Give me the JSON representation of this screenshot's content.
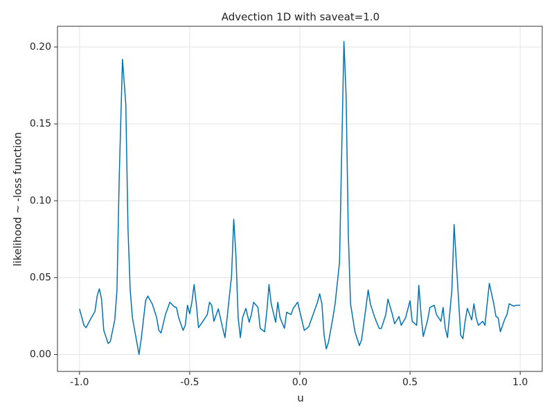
{
  "chart_data": {
    "type": "line",
    "title": "Advection 1D with saveat=1.0",
    "x_label": "u",
    "y_label": "likelihood ~ -loss function",
    "xlim": [
      -1.1,
      1.1
    ],
    "ylim": [
      -0.011,
      0.2135
    ],
    "xticks": [
      {
        "value": -1.0,
        "label": "-1.0"
      },
      {
        "value": -0.5,
        "label": "-0.5"
      },
      {
        "value": 0.0,
        "label": "0.0"
      },
      {
        "value": 0.5,
        "label": "0.5"
      },
      {
        "value": 1.0,
        "label": "1.0"
      }
    ],
    "yticks": [
      {
        "value": 0.0,
        "label": "0.00"
      },
      {
        "value": 0.05,
        "label": "0.05"
      },
      {
        "value": 0.1,
        "label": "0.10"
      },
      {
        "value": 0.15,
        "label": "0.15"
      },
      {
        "value": 0.2,
        "label": "0.20"
      }
    ],
    "grid": true,
    "x": [
      -1.0,
      -0.98,
      -0.97,
      -0.95,
      -0.93,
      -0.92,
      -0.91,
      -0.9,
      -0.89,
      -0.87,
      -0.86,
      -0.84,
      -0.83,
      -0.82,
      -0.805,
      -0.79,
      -0.78,
      -0.77,
      -0.76,
      -0.74,
      -0.73,
      -0.72,
      -0.7,
      -0.69,
      -0.67,
      -0.65,
      -0.64,
      -0.63,
      -0.61,
      -0.59,
      -0.57,
      -0.56,
      -0.55,
      -0.53,
      -0.52,
      -0.51,
      -0.5,
      -0.49,
      -0.48,
      -0.47,
      -0.46,
      -0.44,
      -0.42,
      -0.41,
      -0.4,
      -0.39,
      -0.37,
      -0.35,
      -0.34,
      -0.33,
      -0.31,
      -0.3,
      -0.29,
      -0.28,
      -0.27,
      -0.26,
      -0.245,
      -0.23,
      -0.22,
      -0.21,
      -0.19,
      -0.18,
      -0.16,
      -0.15,
      -0.14,
      -0.13,
      -0.11,
      -0.1,
      -0.09,
      -0.07,
      -0.06,
      -0.04,
      -0.03,
      -0.01,
      0.0,
      0.02,
      0.04,
      0.06,
      0.08,
      0.09,
      0.1,
      0.11,
      0.12,
      0.13,
      0.15,
      0.16,
      0.18,
      0.19,
      0.2,
      0.21,
      0.22,
      0.23,
      0.25,
      0.27,
      0.28,
      0.3,
      0.31,
      0.32,
      0.34,
      0.36,
      0.37,
      0.39,
      0.4,
      0.42,
      0.43,
      0.45,
      0.46,
      0.48,
      0.5,
      0.51,
      0.53,
      0.54,
      0.55,
      0.56,
      0.58,
      0.59,
      0.61,
      0.62,
      0.64,
      0.65,
      0.66,
      0.67,
      0.69,
      0.7,
      0.71,
      0.73,
      0.74,
      0.75,
      0.76,
      0.78,
      0.79,
      0.8,
      0.81,
      0.83,
      0.84,
      0.85,
      0.86,
      0.88,
      0.89,
      0.9,
      0.91,
      0.93,
      0.94,
      0.95,
      0.97,
      0.98,
      1.0
    ],
    "series": [
      {
        "color": "#0072b2",
        "values": [
          0.0297,
          0.019,
          0.0175,
          0.023,
          0.028,
          0.038,
          0.0427,
          0.036,
          0.0157,
          0.0072,
          0.0085,
          0.0225,
          0.042,
          0.114,
          0.192,
          0.163,
          0.082,
          0.042,
          0.024,
          0.008,
          0.0,
          0.01,
          0.035,
          0.038,
          0.033,
          0.024,
          0.0157,
          0.014,
          0.026,
          0.034,
          0.031,
          0.0306,
          0.024,
          0.0157,
          0.019,
          0.032,
          0.0265,
          0.034,
          0.0455,
          0.033,
          0.0175,
          0.0216,
          0.026,
          0.034,
          0.032,
          0.0216,
          0.0297,
          0.017,
          0.011,
          0.024,
          0.051,
          0.088,
          0.064,
          0.024,
          0.011,
          0.024,
          0.03,
          0.021,
          0.026,
          0.034,
          0.0306,
          0.017,
          0.0148,
          0.028,
          0.0455,
          0.033,
          0.021,
          0.034,
          0.024,
          0.017,
          0.0275,
          0.026,
          0.03,
          0.034,
          0.028,
          0.0157,
          0.018,
          0.026,
          0.034,
          0.0395,
          0.033,
          0.0126,
          0.0036,
          0.008,
          0.024,
          0.033,
          0.06,
          0.132,
          0.2036,
          0.168,
          0.078,
          0.033,
          0.0148,
          0.0058,
          0.0094,
          0.0306,
          0.042,
          0.033,
          0.024,
          0.017,
          0.017,
          0.026,
          0.036,
          0.026,
          0.02,
          0.0247,
          0.019,
          0.024,
          0.035,
          0.0216,
          0.019,
          0.045,
          0.026,
          0.0117,
          0.0225,
          0.0306,
          0.032,
          0.026,
          0.0216,
          0.0306,
          0.017,
          0.011,
          0.042,
          0.0845,
          0.06,
          0.0126,
          0.0103,
          0.0216,
          0.03,
          0.0225,
          0.033,
          0.024,
          0.019,
          0.0216,
          0.019,
          0.033,
          0.0463,
          0.033,
          0.0247,
          0.024,
          0.0148,
          0.023,
          0.026,
          0.033,
          0.0315,
          0.032,
          0.032
        ]
      }
    ]
  }
}
